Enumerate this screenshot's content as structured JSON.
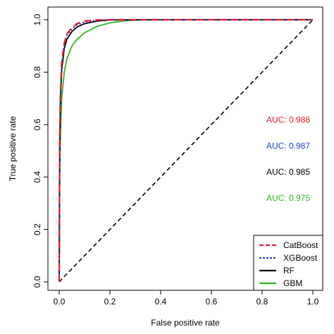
{
  "chart_data": {
    "type": "line",
    "xlabel": "False positive rate",
    "ylabel": "True positive rate",
    "xlim": [
      0,
      1
    ],
    "ylim": [
      0,
      1
    ],
    "xticks": [
      "0.0",
      "0.2",
      "0.4",
      "0.6",
      "0.8",
      "1.0"
    ],
    "yticks": [
      "0.0",
      "0.2",
      "0.4",
      "0.6",
      "0.8",
      "1.0"
    ],
    "grid": false,
    "legend_position": "bottom-right",
    "reference_line": {
      "x": [
        0,
        1
      ],
      "y": [
        0,
        1
      ],
      "style": "dashed",
      "color": "#000000"
    },
    "series": [
      {
        "name": "CatBoost",
        "color": "#e8192c",
        "dash": "dashed",
        "auc_label": "AUC: 0.988",
        "x": [
          0,
          0.002,
          0.005,
          0.01,
          0.02,
          0.03,
          0.05,
          0.07,
          0.1,
          0.15,
          0.2,
          0.3,
          1.0
        ],
        "y": [
          0,
          0.55,
          0.72,
          0.84,
          0.91,
          0.945,
          0.97,
          0.985,
          0.995,
          0.999,
          1.0,
          1.0,
          1.0
        ]
      },
      {
        "name": "XGBoost",
        "color": "#1c3fc7",
        "dash": "dotted",
        "auc_label": "AUC: 0.987",
        "x": [
          0,
          0.002,
          0.005,
          0.01,
          0.02,
          0.03,
          0.05,
          0.07,
          0.1,
          0.15,
          0.2,
          0.3,
          1.0
        ],
        "y": [
          0,
          0.53,
          0.71,
          0.83,
          0.905,
          0.94,
          0.965,
          0.98,
          0.992,
          0.998,
          1.0,
          1.0,
          1.0
        ]
      },
      {
        "name": "RF",
        "color": "#000000",
        "dash": "solid",
        "auc_label": "AUC: 0.985",
        "x": [
          0,
          0.002,
          0.005,
          0.01,
          0.02,
          0.03,
          0.05,
          0.07,
          0.1,
          0.15,
          0.2,
          0.3,
          1.0
        ],
        "y": [
          0,
          0.5,
          0.69,
          0.81,
          0.89,
          0.925,
          0.955,
          0.972,
          0.985,
          0.995,
          0.999,
          1.0,
          1.0
        ]
      },
      {
        "name": "GBM",
        "color": "#2db51f",
        "dash": "solid",
        "auc_label": "AUC: 0.975",
        "x": [
          0,
          0.002,
          0.005,
          0.01,
          0.02,
          0.03,
          0.05,
          0.07,
          0.1,
          0.15,
          0.2,
          0.25,
          0.3,
          0.4,
          1.0
        ],
        "y": [
          0,
          0.4,
          0.56,
          0.7,
          0.8,
          0.85,
          0.9,
          0.925,
          0.95,
          0.975,
          0.988,
          0.995,
          0.998,
          1.0,
          1.0
        ]
      }
    ]
  }
}
